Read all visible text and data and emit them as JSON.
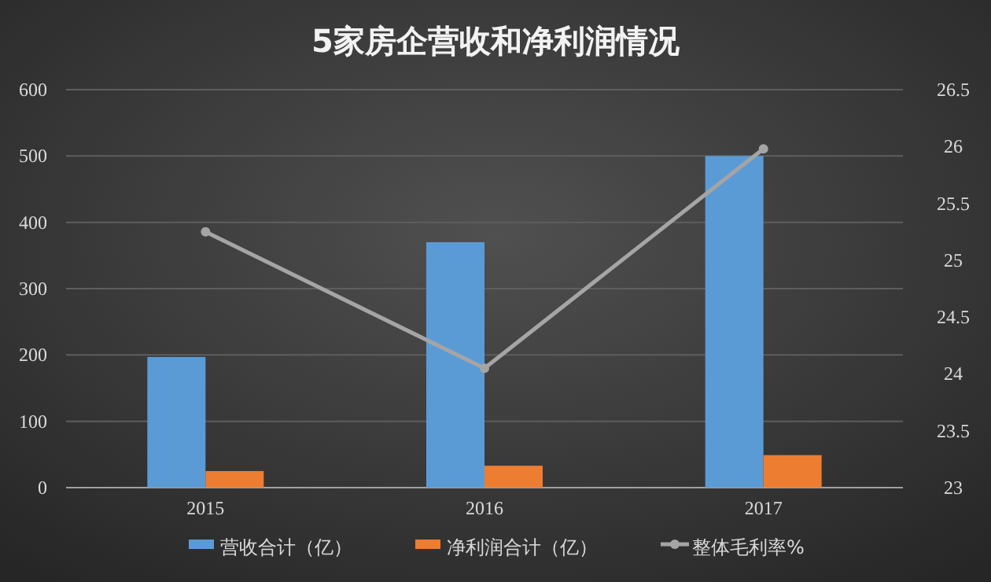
{
  "chart_data": {
    "type": "bar",
    "title": "5家房企营收和净利润情况",
    "categories": [
      "2015",
      "2016",
      "2017"
    ],
    "series": [
      {
        "name": "营收合计（亿）",
        "color": "#5b9bd5",
        "values": [
          197,
          370,
          500
        ]
      },
      {
        "name": "净利润合计（亿）",
        "color": "#ed7d31",
        "values": [
          25,
          33,
          49
        ]
      },
      {
        "name": "整体毛利率%",
        "type": "line",
        "axis": "y2",
        "color": "#a5a5a5",
        "marker": "circle",
        "values": [
          25.25,
          24.05,
          25.98
        ]
      }
    ],
    "ylim": [
      0,
      600
    ],
    "yticks": [
      0,
      100,
      200,
      300,
      400,
      500,
      600
    ],
    "y2lim": [
      23,
      26.5
    ],
    "y2ticks": [
      23,
      23.5,
      24,
      24.5,
      25,
      25.5,
      26,
      26.5
    ],
    "grid": "y",
    "legend": "bottom"
  }
}
